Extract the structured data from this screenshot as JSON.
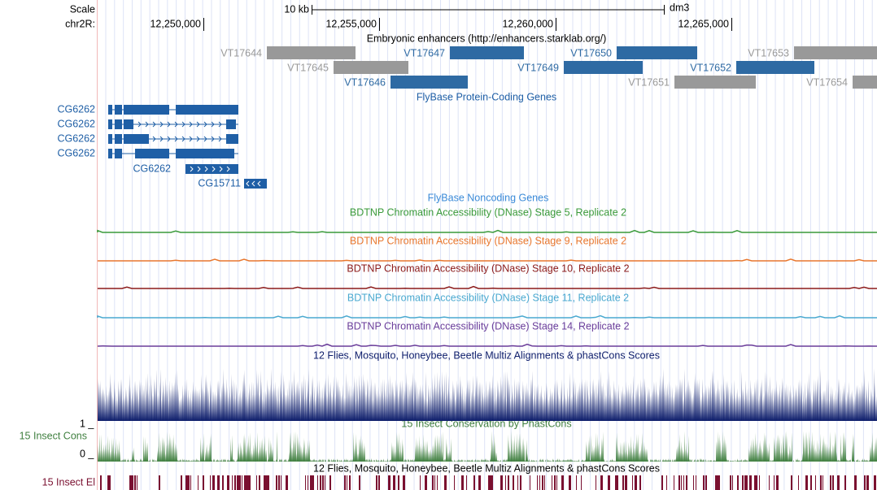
{
  "ruler": {
    "scale_label": "Scale",
    "chrom_label": "chr2R:",
    "scale_bar": "10 kb",
    "assembly": "dm3",
    "positions": [
      "12,250,000",
      "12,255,000",
      "12,260,000",
      "12,265,000"
    ]
  },
  "enhancers": {
    "title": "Embryonic enhancers (http://enhancers.starklab.org/)",
    "active_color": "#2e6aa3",
    "inactive_color": "#999999",
    "items": [
      {
        "name": "VT17644",
        "active": false
      },
      {
        "name": "VT17645",
        "active": false
      },
      {
        "name": "VT17646",
        "active": true
      },
      {
        "name": "VT17647",
        "active": true
      },
      {
        "name": "VT17649",
        "active": true
      },
      {
        "name": "VT17650",
        "active": true
      },
      {
        "name": "VT17651",
        "active": false
      },
      {
        "name": "VT17652",
        "active": true
      },
      {
        "name": "VT17653",
        "active": false
      },
      {
        "name": "VT17654",
        "active": false
      }
    ]
  },
  "protein_genes": {
    "title": "FlyBase Protein-Coding Genes",
    "color": "#1f5fa6",
    "genes": [
      "CG6262",
      "CG6262",
      "CG6262",
      "CG6262",
      "CG6262",
      "CG15711"
    ]
  },
  "noncoding_genes": {
    "title": "FlyBase Noncoding Genes",
    "color": "#3a8ad8"
  },
  "dnase_tracks": [
    {
      "title": "BDTNP Chromatin Accessibility (DNase) Stage 5, Replicate 2",
      "color": "#3a9a3a"
    },
    {
      "title": "BDTNP Chromatin Accessibility (DNase) Stage 9, Replicate 2",
      "color": "#e8772e"
    },
    {
      "title": "BDTNP Chromatin Accessibility (DNase) Stage 10, Replicate 2",
      "color": "#8b1a1a"
    },
    {
      "title": "BDTNP Chromatin Accessibility (DNase) Stage 11, Replicate 2",
      "color": "#4aa9d0"
    },
    {
      "title": "BDTNP Chromatin Accessibility (DNase) Stage 14, Replicate 2",
      "color": "#6a3d9a"
    }
  ],
  "multiz": {
    "title": "12 Flies, Mosquito, Honeybee, Beetle Multiz Alignments & phastCons Scores",
    "color": "#0d1d6b"
  },
  "phastcons": {
    "title": "15 Insect Conservation by PhastCons",
    "left_label": "15 Insect Cons",
    "max_label": "1 _",
    "min_label": "0 _",
    "color": "#3f7f3f"
  },
  "elements": {
    "title": "12 Flies, Mosquito, Honeybee, Beetle Multiz Alignments & phastCons Scores",
    "left_label": "15 Insect El",
    "color": "#7a1030"
  }
}
